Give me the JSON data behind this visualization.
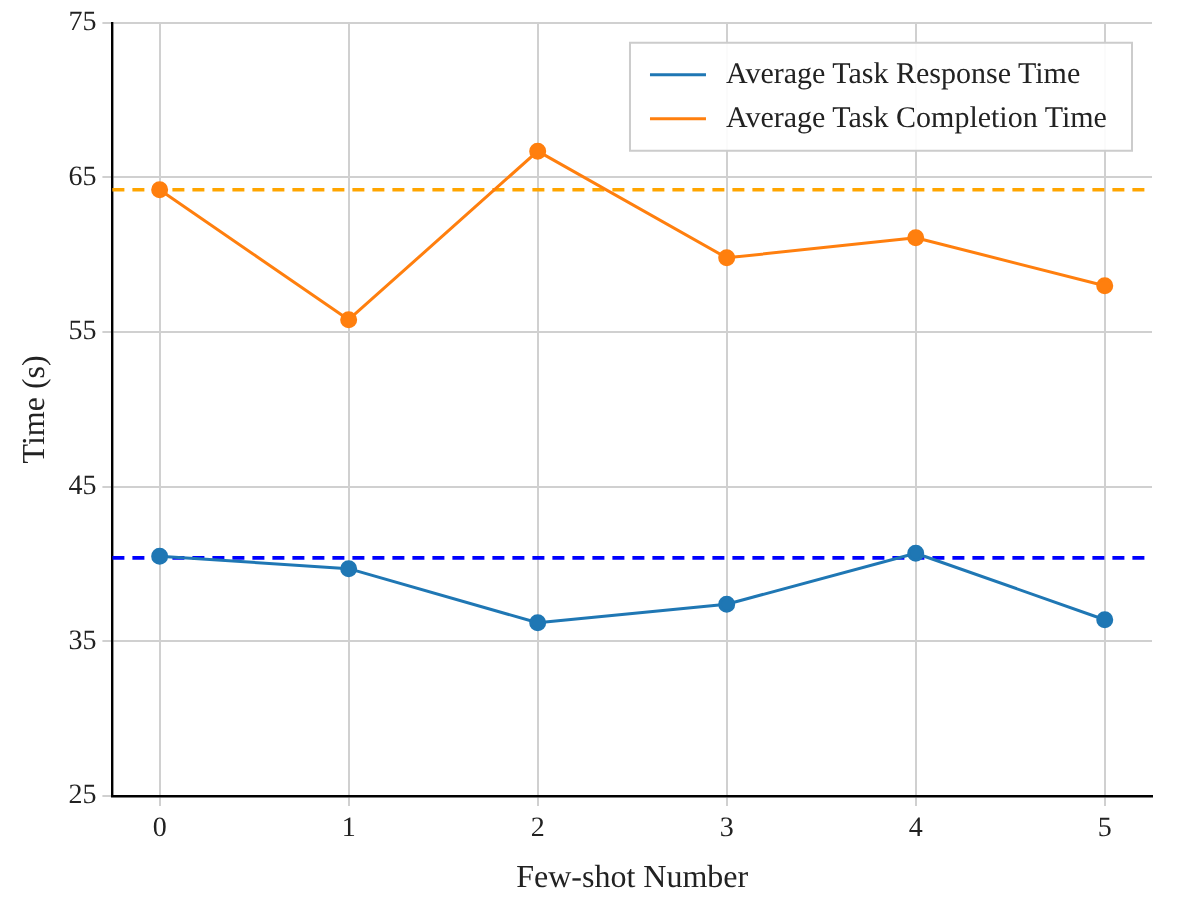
{
  "chart_data": {
    "type": "line",
    "xlabel": "Few-shot Number",
    "ylabel": "Time (s)",
    "x": [
      0,
      1,
      2,
      3,
      4,
      5
    ],
    "series": [
      {
        "name": "Average Task Response Time",
        "color": "#1f77b4",
        "values": [
          40.5,
          39.7,
          36.2,
          37.4,
          40.7,
          36.4
        ]
      },
      {
        "name": "Average Task Completion Time",
        "color": "#ff7f0e",
        "values": [
          64.2,
          55.8,
          66.7,
          59.8,
          61.1,
          58.0
        ]
      }
    ],
    "xlim": [
      -0.25,
      5.25
    ],
    "xticks": [
      0,
      1,
      2,
      3,
      4,
      5
    ],
    "ylim": [
      25,
      75
    ],
    "yticks": [
      25,
      35,
      45,
      55,
      65,
      75
    ],
    "ref_lines": [
      {
        "axis": "y",
        "value": 40.4,
        "color": "#0000ff",
        "line_style": "dashed"
      },
      {
        "axis": "y",
        "value": 64.2,
        "color": "#ffa500",
        "line_style": "dashed"
      }
    ],
    "grid": true,
    "legend": "top right",
    "marker": "circle",
    "line_style": "solid"
  }
}
